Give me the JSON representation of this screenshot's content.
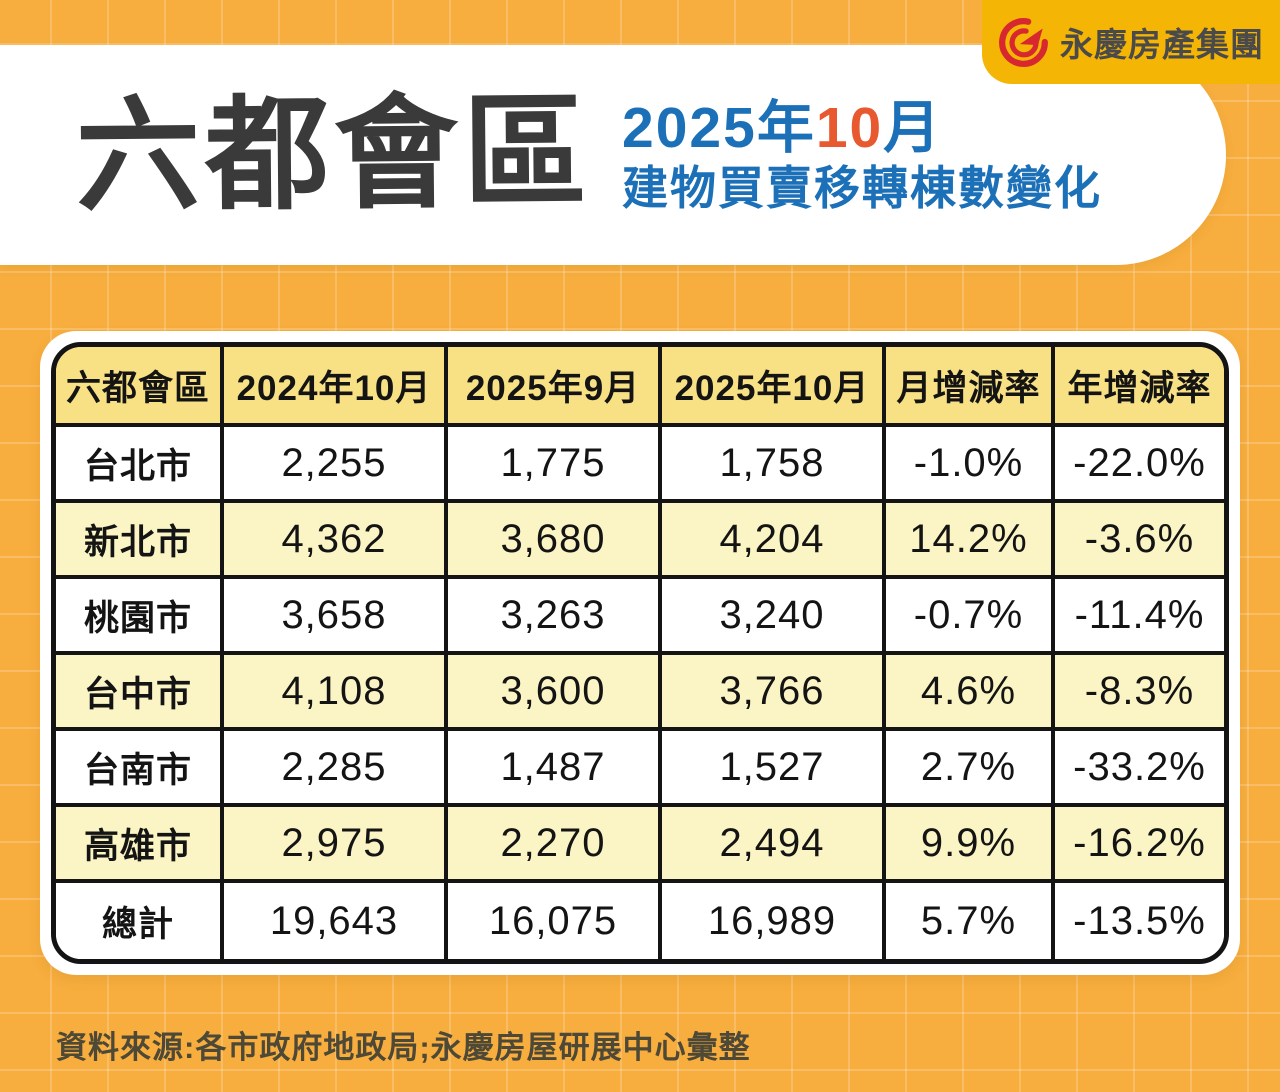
{
  "brand": {
    "logo_text": "永慶房產集團",
    "logo_icon": "yungching-swirl-arrow"
  },
  "header": {
    "title": "六都會區",
    "subtitle_line1_prefix": "2025年",
    "subtitle_line1_highlight": "10",
    "subtitle_line1_suffix": "月",
    "subtitle_line2": "建物買賣移轉棟數變化"
  },
  "table": {
    "columns": [
      "六都會區",
      "2024年10月",
      "2025年9月",
      "2025年10月",
      "月增減率",
      "年增減率"
    ],
    "rows": [
      {
        "label": "台北市",
        "cells": [
          "2,255",
          "1,775",
          "1,758",
          "-1.0%",
          "-22.0%"
        ],
        "alt": false
      },
      {
        "label": "新北市",
        "cells": [
          "4,362",
          "3,680",
          "4,204",
          "14.2%",
          "-3.6%"
        ],
        "alt": true
      },
      {
        "label": "桃園市",
        "cells": [
          "3,658",
          "3,263",
          "3,240",
          "-0.7%",
          "-11.4%"
        ],
        "alt": false
      },
      {
        "label": "台中市",
        "cells": [
          "4,108",
          "3,600",
          "3,766",
          "4.6%",
          "-8.3%"
        ],
        "alt": true
      },
      {
        "label": "台南市",
        "cells": [
          "2,285",
          "1,487",
          "1,527",
          "2.7%",
          "-33.2%"
        ],
        "alt": false
      },
      {
        "label": "高雄市",
        "cells": [
          "2,975",
          "2,270",
          "2,494",
          "9.9%",
          "-16.2%"
        ],
        "alt": true
      },
      {
        "label": "總計",
        "cells": [
          "19,643",
          "16,075",
          "16,989",
          "5.7%",
          "-13.5%"
        ],
        "alt": false
      }
    ]
  },
  "footer": {
    "source": "資料來源:各市政府地政局;永慶房屋研展中心彙整"
  },
  "colors": {
    "page_bg": "#F7AE3E",
    "gold_band": "#F5B504",
    "brand_red": "#D7282F",
    "title_dark": "#3A3A3A",
    "accent_blue": "#1B70B8",
    "accent_orange": "#E9592F",
    "header_row_yellow": "#F8E084",
    "alt_row_yellow": "#FBF4C4",
    "table_border": "#141414",
    "footer_text": "#4E4837"
  },
  "chart_data": {
    "type": "table",
    "title": "六都會區 2025年10月 建物買賣移轉棟數變化",
    "columns": [
      "六都會區",
      "2024年10月",
      "2025年9月",
      "2025年10月",
      "月增減率",
      "年增減率"
    ],
    "rows": [
      [
        "台北市",
        2255,
        1775,
        1758,
        "-1.0%",
        "-22.0%"
      ],
      [
        "新北市",
        4362,
        3680,
        4204,
        "14.2%",
        "-3.6%"
      ],
      [
        "桃園市",
        3658,
        3263,
        3240,
        "-0.7%",
        "-11.4%"
      ],
      [
        "台中市",
        4108,
        3600,
        3766,
        "4.6%",
        "-8.3%"
      ],
      [
        "台南市",
        2285,
        1487,
        1527,
        "2.7%",
        "-33.2%"
      ],
      [
        "高雄市",
        2975,
        2270,
        2494,
        "9.9%",
        "-16.2%"
      ],
      [
        "總計",
        19643,
        16075,
        16989,
        "5.7%",
        "-13.5%"
      ]
    ],
    "source_note": "資料來源:各市政府地政局;永慶房屋研展中心彙整"
  }
}
